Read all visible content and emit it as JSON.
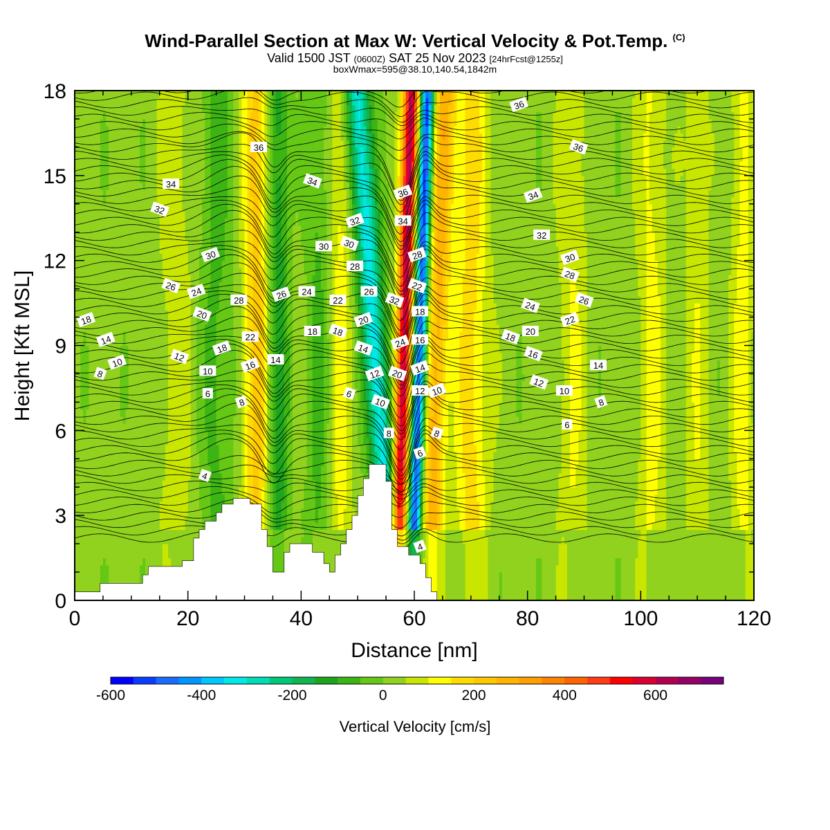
{
  "header": {
    "title": "Wind-Parallel Section at Max W: Vertical Velocity & Pot.Temp.",
    "copyright": "(C)",
    "valid_a": "Valid 1500 JST",
    "valid_b": "(0600Z)",
    "valid_c": "SAT 25 Nov 2023",
    "valid_d": "[24hrFcst@1255z]",
    "box_info": "boxWmax=595@38.10,140.54,1842m"
  },
  "chart_data": {
    "type": "heatmap",
    "title": "Wind-Parallel Section at Max W: Vertical Velocity & Pot.Temp.",
    "xlabel": "Distance [nm]",
    "ylabel": "Height [Kft MSL]",
    "xlim": [
      0,
      120
    ],
    "ylim": [
      0,
      18
    ],
    "x_ticks": [
      0,
      20,
      40,
      60,
      80,
      100,
      120
    ],
    "y_ticks": [
      0,
      3,
      6,
      9,
      12,
      15,
      18
    ],
    "colorbar": {
      "label": "Vertical Velocity [cm/s]",
      "ticks": [
        -600,
        -400,
        -200,
        0,
        200,
        400,
        600
      ],
      "range": [
        -600,
        750
      ],
      "colors": [
        "#0000ff",
        "#0a3cff",
        "#1a6cff",
        "#0096ff",
        "#00c8ff",
        "#00e8e8",
        "#00dcb4",
        "#00c878",
        "#10b450",
        "#1ea51e",
        "#3cb414",
        "#64c814",
        "#90d21e",
        "#c8e600",
        "#ffff00",
        "#ffdc00",
        "#ffc800",
        "#ffb400",
        "#ffa000",
        "#ff8200",
        "#ff6400",
        "#ff3c14",
        "#ff0000",
        "#dc0032",
        "#b40050",
        "#960064",
        "#780078"
      ]
    },
    "terrain": [
      [
        0,
        0.3
      ],
      [
        4.5,
        0.3
      ],
      [
        4.5,
        0.6
      ],
      [
        12,
        0.6
      ],
      [
        12,
        0.9
      ],
      [
        13,
        0.9
      ],
      [
        13,
        1.2
      ],
      [
        19,
        1.2
      ],
      [
        19,
        1.4
      ],
      [
        21,
        1.4
      ],
      [
        21,
        2.2
      ],
      [
        22,
        2.2
      ],
      [
        22,
        2.5
      ],
      [
        23,
        2.5
      ],
      [
        23,
        2.8
      ],
      [
        25,
        2.8
      ],
      [
        25,
        3.1
      ],
      [
        26,
        3.1
      ],
      [
        26,
        3.4
      ],
      [
        28,
        3.4
      ],
      [
        28,
        3.6
      ],
      [
        31,
        3.6
      ],
      [
        31,
        3.4
      ],
      [
        33,
        3.4
      ],
      [
        33,
        2.5
      ],
      [
        34,
        2.5
      ],
      [
        34,
        1.9
      ],
      [
        35,
        1.9
      ],
      [
        35,
        1.0
      ],
      [
        37,
        1.0
      ],
      [
        37,
        1.7
      ],
      [
        38,
        1.7
      ],
      [
        38,
        2.0
      ],
      [
        42,
        2.0
      ],
      [
        42,
        1.7
      ],
      [
        44,
        1.7
      ],
      [
        44,
        1.3
      ],
      [
        45,
        1.3
      ],
      [
        45,
        1.0
      ],
      [
        46,
        1.0
      ],
      [
        46,
        1.6
      ],
      [
        47,
        1.6
      ],
      [
        47,
        2.0
      ],
      [
        48,
        2.0
      ],
      [
        48,
        2.5
      ],
      [
        49,
        2.5
      ],
      [
        49,
        3.0
      ],
      [
        50,
        3.0
      ],
      [
        50,
        3.7
      ],
      [
        51,
        3.7
      ],
      [
        51,
        4.3
      ],
      [
        52,
        4.3
      ],
      [
        52,
        4.8
      ],
      [
        55,
        4.8
      ],
      [
        55,
        4.2
      ],
      [
        56,
        4.2
      ],
      [
        56,
        2.5
      ],
      [
        57,
        2.5
      ],
      [
        57,
        1.9
      ],
      [
        59,
        1.9
      ],
      [
        59,
        1.6
      ],
      [
        61,
        1.6
      ],
      [
        61,
        1.3
      ],
      [
        62,
        1.3
      ],
      [
        62,
        0.8
      ],
      [
        63,
        0.8
      ],
      [
        63,
        0.3
      ],
      [
        64,
        0.3
      ],
      [
        64,
        0.3
      ]
    ],
    "w_bands": [
      {
        "x": 36,
        "w": -150,
        "width": 1.8
      },
      {
        "x": 32,
        "w": 200,
        "width": 2.2
      },
      {
        "x": 53,
        "w": -350,
        "width": 2.2
      },
      {
        "x": 58.2,
        "w": 600,
        "width": 1.4
      },
      {
        "x": 61,
        "w": -550,
        "width": 1.2
      },
      {
        "x": 64,
        "w": 250,
        "width": 2.0
      },
      {
        "x": 70,
        "w": 150,
        "width": 3.0
      },
      {
        "x": 47,
        "w": 100,
        "width": 2.0
      },
      {
        "x": 43,
        "w": -80,
        "width": 2.0
      },
      {
        "x": 25,
        "w": -80,
        "width": 3.0
      },
      {
        "x": 18,
        "w": 60,
        "width": 3.0
      },
      {
        "x": 88,
        "w": 80,
        "width": 2.5
      },
      {
        "x": 102,
        "w": 90,
        "width": 2.5
      },
      {
        "x": 110,
        "w": 70,
        "width": 2.0
      },
      {
        "x": 118,
        "w": 100,
        "width": 2.0
      }
    ],
    "theta_labels": [
      {
        "text": "36",
        "x": 78.5,
        "y": 17.5
      },
      {
        "text": "36",
        "x": 32.5,
        "y": 16.0
      },
      {
        "text": "36",
        "x": 89,
        "y": 16.0
      },
      {
        "text": "36",
        "x": 58,
        "y": 14.4
      },
      {
        "text": "34",
        "x": 17,
        "y": 14.7
      },
      {
        "text": "34",
        "x": 42,
        "y": 14.8
      },
      {
        "text": "34",
        "x": 81,
        "y": 14.3
      },
      {
        "text": "34",
        "x": 58,
        "y": 13.4
      },
      {
        "text": "32",
        "x": 15,
        "y": 13.8
      },
      {
        "text": "32",
        "x": 49.5,
        "y": 13.4
      },
      {
        "text": "32",
        "x": 82.5,
        "y": 12.9
      },
      {
        "text": "32",
        "x": 56.5,
        "y": 10.6
      },
      {
        "text": "30",
        "x": 24,
        "y": 12.2
      },
      {
        "text": "30",
        "x": 44,
        "y": 12.5
      },
      {
        "text": "30",
        "x": 48.5,
        "y": 12.6
      },
      {
        "text": "30",
        "x": 87.5,
        "y": 12.1
      },
      {
        "text": "28",
        "x": 49.5,
        "y": 11.8
      },
      {
        "text": "28",
        "x": 87.5,
        "y": 11.5
      },
      {
        "text": "28",
        "x": 60.5,
        "y": 12.2
      },
      {
        "text": "28",
        "x": 29,
        "y": 10.6
      },
      {
        "text": "26",
        "x": 17,
        "y": 11.1
      },
      {
        "text": "26",
        "x": 36.5,
        "y": 10.8
      },
      {
        "text": "26",
        "x": 52,
        "y": 10.9
      },
      {
        "text": "26",
        "x": 90,
        "y": 10.6
      },
      {
        "text": "24",
        "x": 21.5,
        "y": 10.9
      },
      {
        "text": "24",
        "x": 41,
        "y": 10.9
      },
      {
        "text": "24",
        "x": 80.5,
        "y": 10.4
      },
      {
        "text": "24",
        "x": 57.5,
        "y": 9.1
      },
      {
        "text": "22",
        "x": 46.5,
        "y": 10.6
      },
      {
        "text": "22",
        "x": 60.5,
        "y": 11.1
      },
      {
        "text": "22",
        "x": 87.5,
        "y": 9.9
      },
      {
        "text": "22",
        "x": 31,
        "y": 9.3
      },
      {
        "text": "20",
        "x": 22.5,
        "y": 10.1
      },
      {
        "text": "20",
        "x": 51,
        "y": 9.9
      },
      {
        "text": "20",
        "x": 80.5,
        "y": 9.5
      },
      {
        "text": "20",
        "x": 57,
        "y": 8.0
      },
      {
        "text": "18",
        "x": 2,
        "y": 9.9
      },
      {
        "text": "18",
        "x": 42,
        "y": 9.5
      },
      {
        "text": "18",
        "x": 46.5,
        "y": 9.5
      },
      {
        "text": "18",
        "x": 26,
        "y": 8.9
      },
      {
        "text": "18",
        "x": 61,
        "y": 10.2
      },
      {
        "text": "18",
        "x": 77,
        "y": 9.3
      },
      {
        "text": "16",
        "x": 31,
        "y": 8.3
      },
      {
        "text": "16",
        "x": 61,
        "y": 9.2
      },
      {
        "text": "16",
        "x": 81,
        "y": 8.7
      },
      {
        "text": "14",
        "x": 5.5,
        "y": 9.2
      },
      {
        "text": "14",
        "x": 35.5,
        "y": 8.5
      },
      {
        "text": "14",
        "x": 51,
        "y": 8.9
      },
      {
        "text": "14",
        "x": 61,
        "y": 8.2
      },
      {
        "text": "14",
        "x": 92.5,
        "y": 8.3
      },
      {
        "text": "12",
        "x": 18.5,
        "y": 8.6
      },
      {
        "text": "12",
        "x": 53,
        "y": 8.0
      },
      {
        "text": "12",
        "x": 61,
        "y": 7.4
      },
      {
        "text": "12",
        "x": 82,
        "y": 7.7
      },
      {
        "text": "10",
        "x": 7.5,
        "y": 8.4
      },
      {
        "text": "10",
        "x": 23.5,
        "y": 8.1
      },
      {
        "text": "10",
        "x": 54,
        "y": 7.0
      },
      {
        "text": "10",
        "x": 64,
        "y": 7.4
      },
      {
        "text": "10",
        "x": 86.5,
        "y": 7.4
      },
      {
        "text": "8",
        "x": 4.5,
        "y": 8.0
      },
      {
        "text": "8",
        "x": 29.5,
        "y": 7.0
      },
      {
        "text": "8",
        "x": 55.5,
        "y": 5.9
      },
      {
        "text": "8",
        "x": 64,
        "y": 5.9
      },
      {
        "text": "8",
        "x": 93,
        "y": 7.0
      },
      {
        "text": "6",
        "x": 23.5,
        "y": 7.3
      },
      {
        "text": "6",
        "x": 48.5,
        "y": 7.3
      },
      {
        "text": "6",
        "x": 61,
        "y": 5.2
      },
      {
        "text": "6",
        "x": 87,
        "y": 6.2
      },
      {
        "text": "4",
        "x": 23,
        "y": 4.4
      },
      {
        "text": "4",
        "x": 61,
        "y": 1.9
      }
    ]
  }
}
